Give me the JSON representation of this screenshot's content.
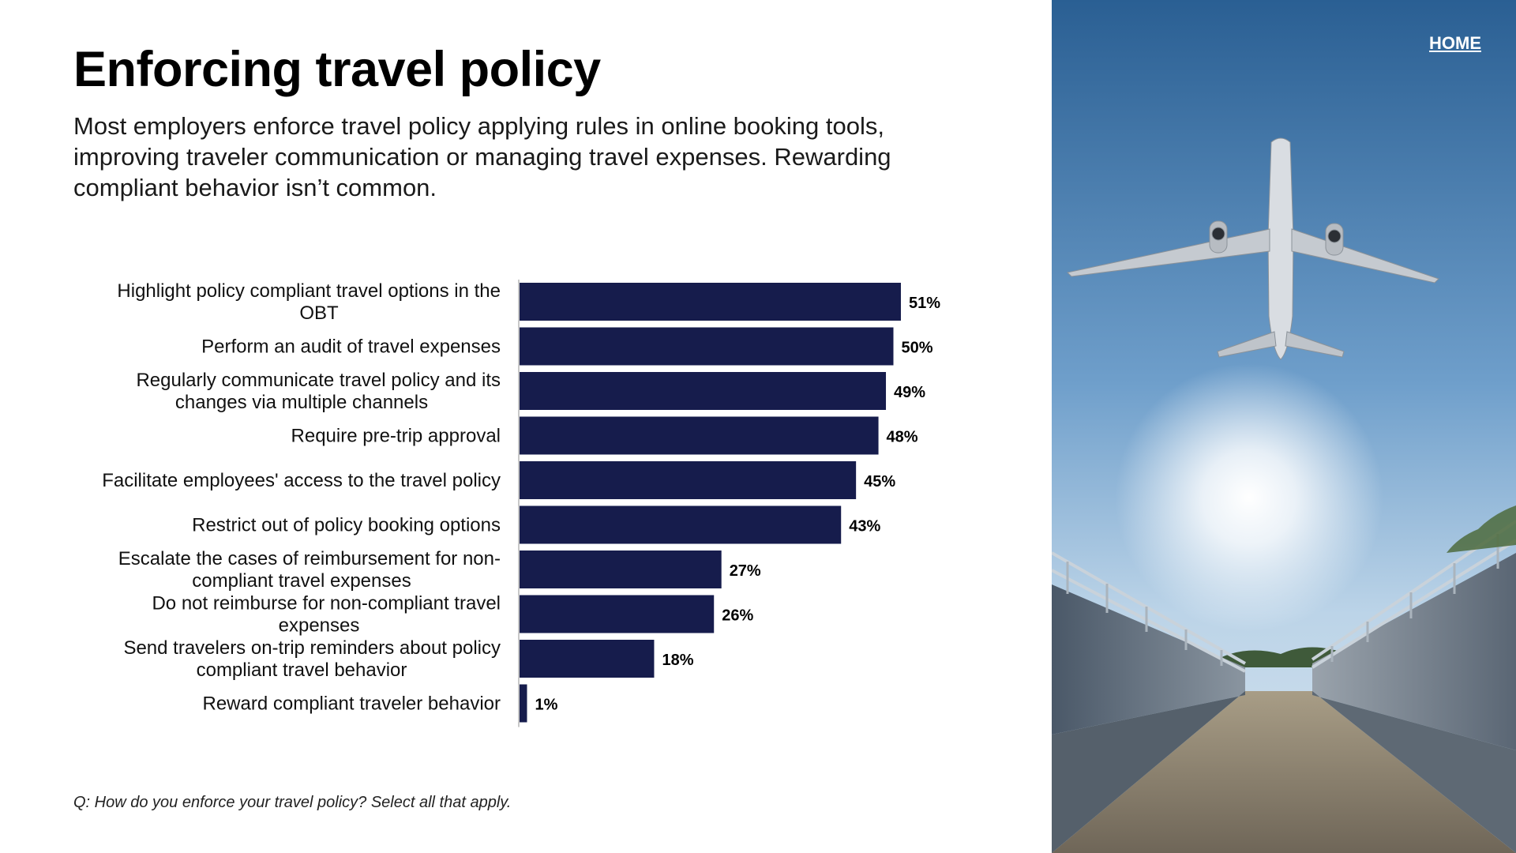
{
  "page": {
    "title": "Enforcing travel policy",
    "subtitle": "Most employers enforce travel policy applying rules in online booking tools, improving traveler communication or managing travel expenses. Rewarding compliant behavior isn’t common.",
    "footnote": "Q: How do you enforce your travel policy? Select all that apply.",
    "home_label": "HOME"
  },
  "colors": {
    "bar": "#161c4c",
    "axis": "#b5b5b5"
  },
  "photo": {
    "icon": "airplane-over-bridge-photo"
  },
  "chart_data": {
    "type": "bar",
    "orientation": "horizontal",
    "categories": [
      [
        "Highlight policy compliant travel options in the",
        "OBT"
      ],
      [
        "Perform an audit of travel expenses"
      ],
      [
        "Regularly communicate travel policy and its",
        "changes via multiple channels"
      ],
      [
        "Require pre-trip approval"
      ],
      [
        "Facilitate employees' access to the travel policy"
      ],
      [
        "Restrict out of policy booking options"
      ],
      [
        "Escalate the cases of reimbursement for non-",
        "compliant travel expenses"
      ],
      [
        "Do not reimburse for non-compliant travel",
        "expenses"
      ],
      [
        "Send travelers on-trip reminders about policy",
        "compliant travel behavior"
      ],
      [
        "Reward compliant traveler behavior"
      ]
    ],
    "values": [
      51,
      50,
      49,
      48,
      45,
      43,
      27,
      26,
      18,
      1
    ],
    "value_labels": [
      "51%",
      "50%",
      "49%",
      "48%",
      "45%",
      "43%",
      "27%",
      "26%",
      "18%",
      "1%"
    ],
    "unit": "%",
    "xlim": [
      0,
      100
    ],
    "grid": false,
    "legend": "none"
  }
}
